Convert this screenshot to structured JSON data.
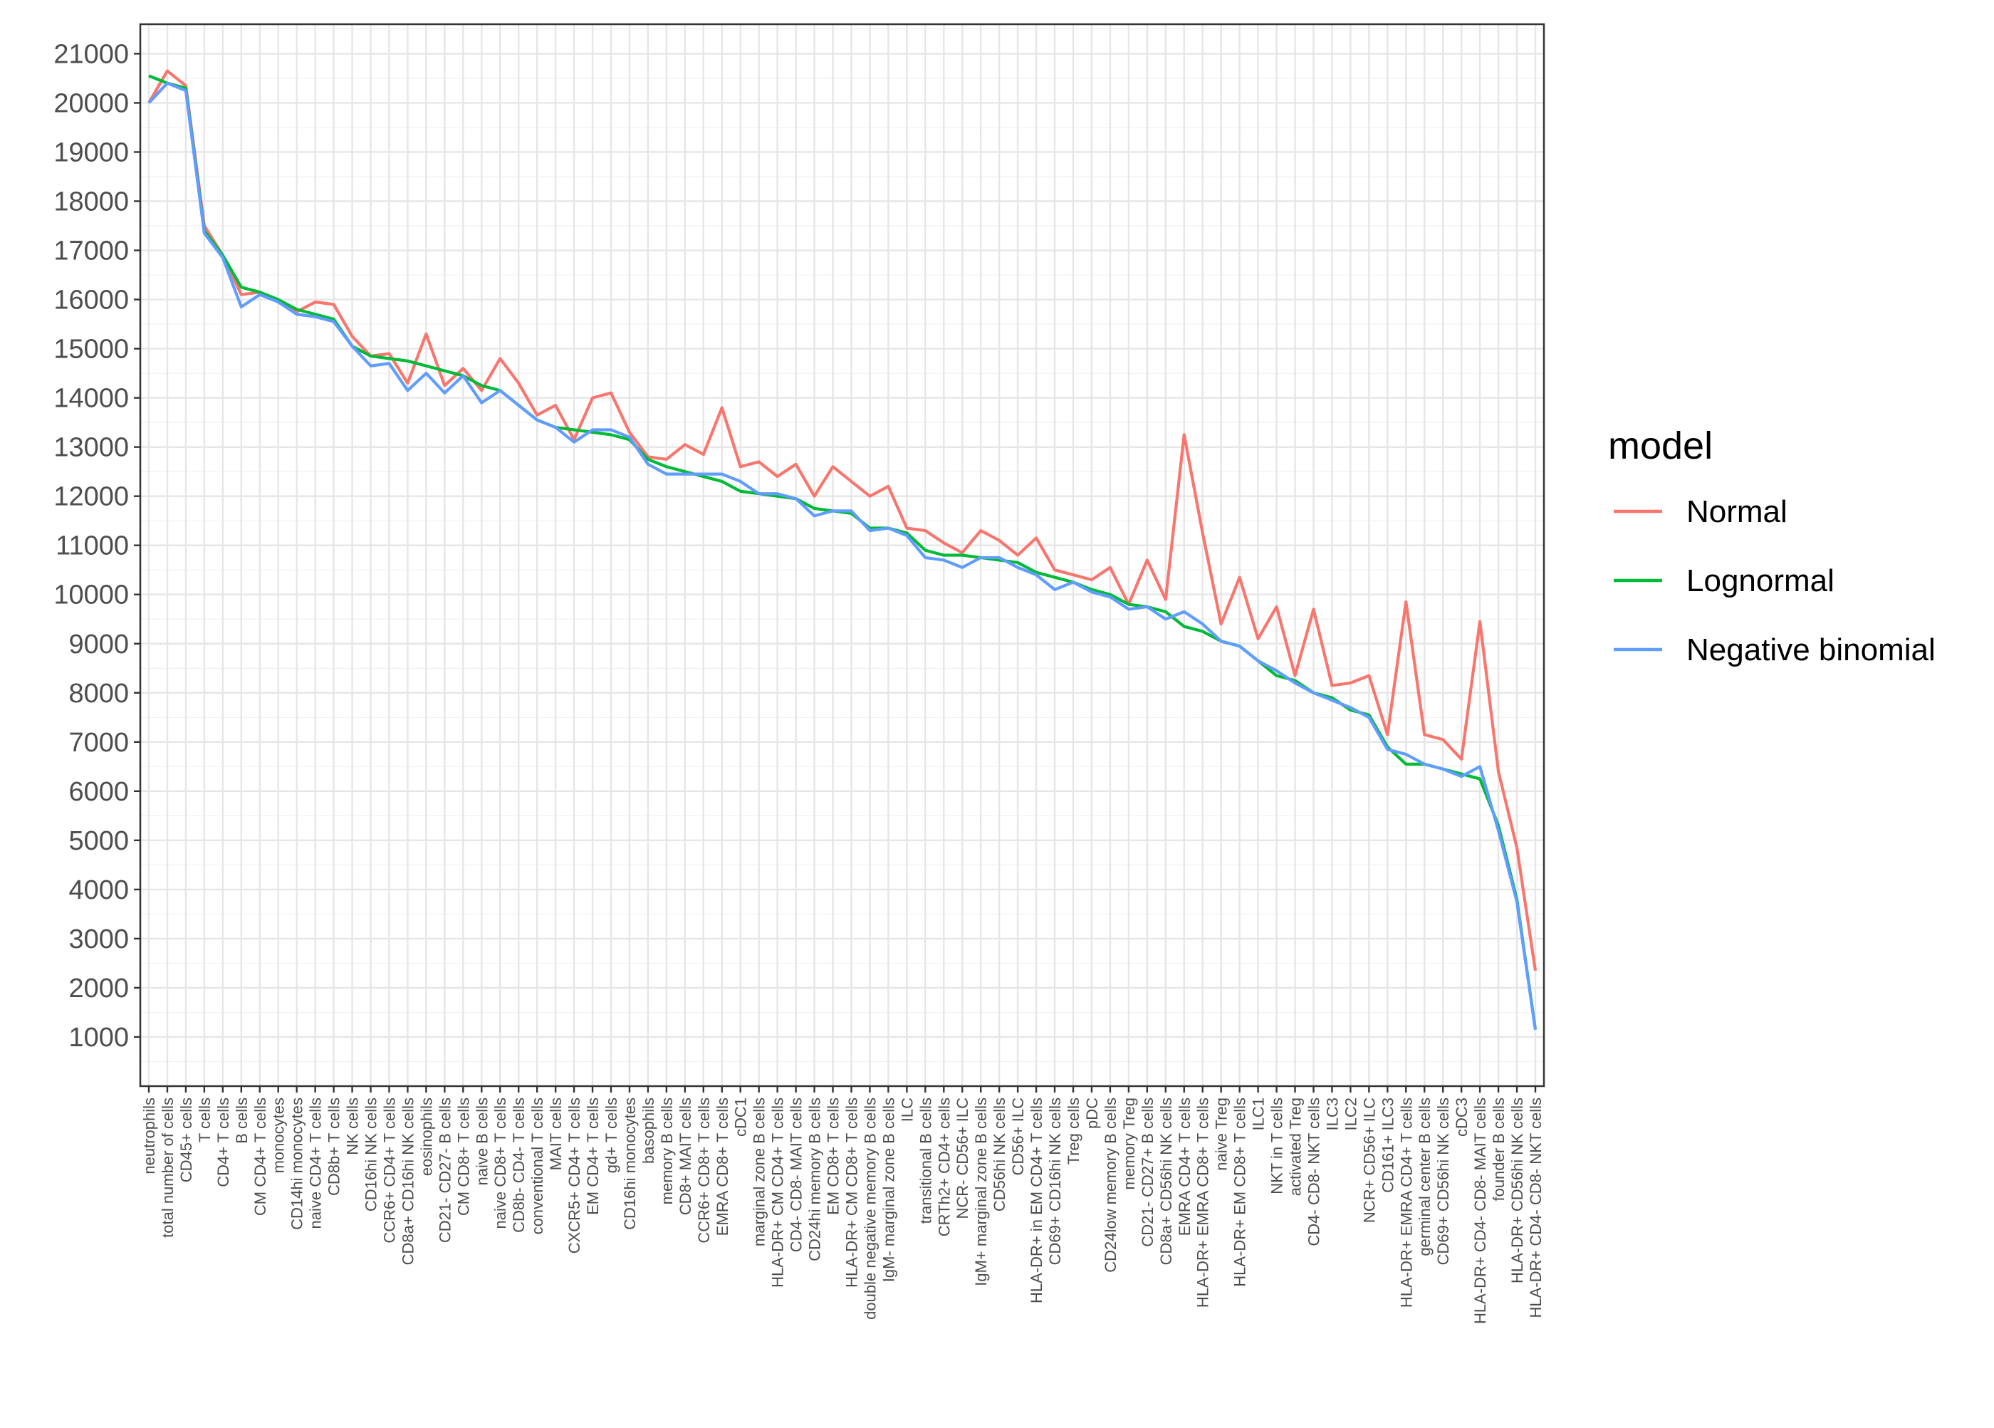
{
  "chart_data": {
    "type": "line",
    "title": "",
    "xlabel": "",
    "ylabel": "",
    "ylim": [
      0,
      21600
    ],
    "y_ticks": [
      1000,
      2000,
      3000,
      4000,
      5000,
      6000,
      7000,
      8000,
      9000,
      10000,
      11000,
      12000,
      13000,
      14000,
      15000,
      16000,
      17000,
      18000,
      19000,
      20000,
      21000
    ],
    "y_tick_labels": [
      "1000",
      "2000",
      "3000",
      "4000",
      "5000",
      "6000",
      "7000",
      "8000",
      "9000",
      "10000",
      "11000",
      "12000",
      "13000",
      "14000",
      "15000",
      "16000",
      "17000",
      "18000",
      "19000",
      "20000",
      "21000"
    ],
    "grid": true,
    "legend": {
      "title": "model",
      "position": "right"
    },
    "categories": [
      "neutrophils",
      "total number of cells",
      "CD45+ cells",
      "T cells",
      "CD4+ T cells",
      "B cells",
      "CM CD4+ T cells",
      "monocytes",
      "CD14hi monocytes",
      "naive CD4+ T cells",
      "CD8b+ T cells",
      "NK cells",
      "CD16hi NK cells",
      "CCR6+ CD4+ T cells",
      "CD8a+ CD16hi NK cells",
      "eosinophils",
      "CD21- CD27- B cells",
      "CM CD8+ T cells",
      "naive B cells",
      "naive CD8+ T cells",
      "CD8b- CD4- T cells",
      "conventional T cells",
      "MAIT cells",
      "CXCR5+ CD4+ T cells",
      "EM CD4+ T cells",
      "gd+ T cells",
      "CD16hi monocytes",
      "basophils",
      "memory B cells",
      "CD8+ MAIT cells",
      "CCR6+ CD8+ T cells",
      "EMRA CD8+ T cells",
      "cDC1",
      "marginal zone B cells",
      "HLA-DR+ CM CD4+ T cells",
      "CD4- CD8- MAIT cells",
      "CD24hi memory B cells",
      "EM CD8+ T cells",
      "HLA-DR+ CM CD8+ T cells",
      "double negative memory B cells",
      "IgM- marginal zone B cells",
      "ILC",
      "transitional B cells",
      "CRTh2+ CD4+ cells",
      "NCR- CD56+ ILC",
      "IgM+ marginal zone B cells",
      "CD56hi NK cells",
      "CD56+ ILC",
      "HLA-DR+ in EM CD4+ T cells",
      "CD69+ CD16hi NK cells",
      "Treg cells",
      "pDC",
      "CD24low memory B cells",
      "memory Treg",
      "CD21- CD27+ B cells",
      "CD8a+ CD56hi NK cells",
      "EMRA CD4+ T cells",
      "HLA-DR+ EMRA CD8+ T cells",
      "naive Treg",
      "HLA-DR+ EM CD8+ T cells",
      "ILC1",
      "NKT in T cells",
      "activated Treg",
      "CD4- CD8- NKT cells",
      "ILC3",
      "ILC2",
      "NCR+ CD56+ ILC",
      "CD161+ ILC3",
      "HLA-DR+ EMRA CD4+ T cells",
      "germinal center B cells",
      "CD69+ CD56hi NK cells",
      "cDC3",
      "HLA-DR+ CD4- CD8- MAIT cells",
      "founder B cells",
      "HLA-DR+ CD56hi NK cells",
      "HLA-DR+ CD4- CD8- NKT cells"
    ],
    "series": [
      {
        "name": "Normal",
        "color": "#F8766D",
        "values": [
          20000,
          20650,
          20350,
          17500,
          16900,
          16100,
          16150,
          15950,
          15750,
          15950,
          15900,
          15250,
          14850,
          14900,
          14300,
          15300,
          14250,
          14600,
          14150,
          14800,
          14300,
          13650,
          13850,
          13150,
          14000,
          14100,
          13300,
          12800,
          12750,
          13050,
          12850,
          13800,
          12600,
          12700,
          12400,
          12650,
          12000,
          12600,
          12300,
          12000,
          12200,
          11350,
          11300,
          11050,
          10850,
          11300,
          11100,
          10800,
          11150,
          10500,
          10400,
          10300,
          10550,
          9800,
          10700,
          9900,
          13250,
          11250,
          9400,
          10350,
          9100,
          9750,
          8350,
          9700,
          8150,
          8200,
          8350,
          7150,
          9850,
          7150,
          7050,
          6650,
          9450,
          6400,
          4850,
          2350
        ]
      },
      {
        "name": "Lognormal",
        "color": "#00BA38",
        "values": [
          20550,
          20400,
          20300,
          17400,
          16900,
          16250,
          16150,
          16000,
          15800,
          15700,
          15600,
          15050,
          14850,
          14800,
          14750,
          14650,
          14550,
          14450,
          14250,
          14150,
          13850,
          13550,
          13400,
          13350,
          13300,
          13250,
          13150,
          12750,
          12600,
          12500,
          12400,
          12300,
          12100,
          12050,
          12000,
          11950,
          11750,
          11700,
          11650,
          11350,
          11350,
          11250,
          10900,
          10800,
          10800,
          10750,
          10700,
          10650,
          10450,
          10350,
          10250,
          10100,
          10000,
          9800,
          9750,
          9650,
          9350,
          9250,
          9050,
          8950,
          8650,
          8350,
          8250,
          8000,
          7900,
          7650,
          7550,
          6900,
          6550,
          6550,
          6450,
          6350,
          6250,
          5300,
          3800,
          1150
        ]
      },
      {
        "name": "Negative binomial",
        "color": "#619CFF",
        "values": [
          20000,
          20400,
          20250,
          17350,
          16850,
          15850,
          16100,
          15950,
          15700,
          15650,
          15550,
          15050,
          14650,
          14700,
          14150,
          14500,
          14100,
          14450,
          13900,
          14150,
          13850,
          13550,
          13400,
          13100,
          13350,
          13350,
          13200,
          12650,
          12450,
          12450,
          12450,
          12450,
          12300,
          12050,
          12050,
          11950,
          11600,
          11700,
          11700,
          11300,
          11350,
          11200,
          10750,
          10700,
          10550,
          10750,
          10750,
          10550,
          10400,
          10100,
          10250,
          10050,
          9950,
          9700,
          9750,
          9500,
          9650,
          9400,
          9050,
          8950,
          8650,
          8450,
          8200,
          8000,
          7850,
          7700,
          7500,
          6850,
          6750,
          6550,
          6450,
          6300,
          6500,
          5200,
          3750,
          1150
        ]
      }
    ]
  }
}
